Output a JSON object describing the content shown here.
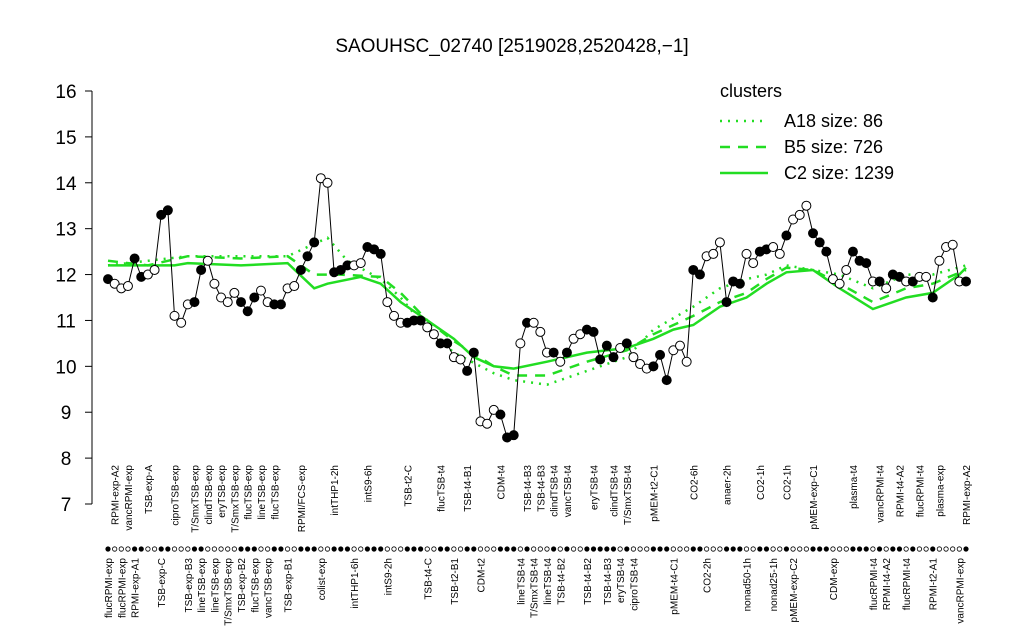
{
  "chart_data": {
    "type": "line",
    "title": "SAOUHSC_02740 [2519028,2520428,−1]",
    "categories": [
      "flucRPMI-exp",
      "RPMI-exp-A2",
      "flucRPMI-exp",
      "vancRPMI-exp",
      "RPMI-exp-A1",
      null,
      "TSB-exp-A",
      null,
      "TSB-exp-C",
      null,
      "ciproTSB-exp",
      null,
      "TSB-exp-B3",
      "T/SmxTSB-exp",
      "lineTSB-exp",
      "clindTSB-exp",
      "lineTSB-exp",
      "eryTSB-exp",
      "T/SmxTSB-exp",
      "T/SmxTSB-exp",
      "TSB-exp-B2",
      "flucTSB-exp",
      "flucTSB-exp",
      "lineTSB-exp",
      "vancTSB-exp",
      "flucTSB-exp",
      null,
      "TSB-exp-B1",
      null,
      "RPMI/FCS-exp",
      null,
      null,
      "colist-exp",
      null,
      "intTHP1-2h",
      null,
      null,
      "intTHP1-6h",
      null,
      "intS9-6h",
      null,
      null,
      "intS9-2h",
      null,
      null,
      "TSB-t2-C",
      null,
      null,
      "TSB-t4-C",
      null,
      "flucTSB-t4",
      null,
      "TSB-t2-B1",
      null,
      "TSB-t4-B1",
      null,
      "CDM-t2",
      null,
      null,
      "CDM-t4",
      null,
      null,
      "lineTSB-t4",
      "TSB-t4-B3",
      "T/SmxTSB-t4",
      "TSB-t4-B3",
      "lineTSB-t4",
      "clindTSB-t4",
      "TSB-t4-B2",
      "vancTSB-t4",
      null,
      null,
      "TSB-t4-B2",
      "eryTSB-t4",
      null,
      "TSB-t4-B3",
      "clindTSB-t4",
      "eryTSB-t4",
      "T/SmxTSB-t4",
      "ciproTSB-t4",
      null,
      null,
      "pMEM-t2-C1",
      null,
      null,
      "pMEM-t4-C1",
      null,
      null,
      "CO2-6h",
      null,
      "CO2-2h",
      null,
      null,
      "anaer-2h",
      null,
      null,
      "nonad50-1h",
      null,
      "CO2-1h",
      null,
      "nonad25-1h",
      null,
      "CO2-1h",
      "pMEM-exp-C2",
      null,
      null,
      "pMEM-exp-C1",
      null,
      null,
      "CDM-exp",
      null,
      null,
      "plasma-t4",
      null,
      null,
      "flucRPMI-t4",
      "vancRPMI-t4",
      "RPMI-t4-A2",
      null,
      "RPMI-t4-A2",
      "flucRPMI-t4",
      null,
      "flucRPMI-t4",
      null,
      "RPMI-t2-A1",
      "plasma-exp",
      null,
      null,
      "vancRPMI-exp",
      "RPMI-exp-A2"
    ],
    "values": [
      11.9,
      11.8,
      11.7,
      11.75,
      12.35,
      11.95,
      12.0,
      12.1,
      13.3,
      13.4,
      11.1,
      10.95,
      11.35,
      11.4,
      12.1,
      12.3,
      11.8,
      11.5,
      11.4,
      11.6,
      11.4,
      11.2,
      11.5,
      11.65,
      11.4,
      11.35,
      11.35,
      11.7,
      11.75,
      12.1,
      12.4,
      12.7,
      14.1,
      14.0,
      12.05,
      12.1,
      12.2,
      12.2,
      12.25,
      12.6,
      12.55,
      12.45,
      11.4,
      11.1,
      10.95,
      10.95,
      11.0,
      11.0,
      10.85,
      10.7,
      10.5,
      10.5,
      10.2,
      10.15,
      9.9,
      10.3,
      8.8,
      8.75,
      9.05,
      8.95,
      8.45,
      8.5,
      10.5,
      10.95,
      10.95,
      10.75,
      10.3,
      10.3,
      10.1,
      10.3,
      10.6,
      10.7,
      10.8,
      10.75,
      10.15,
      10.45,
      10.2,
      10.4,
      10.5,
      10.2,
      10.05,
      9.95,
      10.0,
      10.25,
      9.7,
      10.35,
      10.45,
      10.1,
      12.1,
      12.0,
      12.4,
      12.45,
      12.7,
      11.4,
      11.85,
      11.8,
      12.45,
      12.25,
      12.5,
      12.55,
      12.6,
      12.45,
      12.85,
      13.2,
      13.3,
      13.5,
      12.9,
      12.7,
      12.5,
      11.9,
      11.8,
      12.1,
      12.5,
      12.3,
      12.25,
      11.85,
      11.85,
      11.7,
      12.0,
      11.95,
      11.85,
      11.85,
      11.95,
      11.95,
      11.5,
      12.3,
      12.6,
      12.65,
      11.85,
      11.85
    ],
    "point_colors": [
      "black",
      "white",
      "white",
      "white",
      "black",
      "black",
      "white",
      "white",
      "black",
      "black",
      "white",
      "white",
      "white",
      "black",
      "black",
      "white",
      "white",
      "white",
      "white",
      "white",
      "black",
      "black",
      "black",
      "white",
      "white",
      "black",
      "black",
      "white",
      "white",
      "black",
      "black",
      "black",
      "white",
      "white",
      "black",
      "black",
      "black",
      "white",
      "white",
      "black",
      "black",
      "black",
      "white",
      "white",
      "white",
      "black",
      "black",
      "black",
      "white",
      "white",
      "black",
      "black",
      "white",
      "white",
      "black",
      "black",
      "white",
      "white",
      "white",
      "black",
      "black",
      "black",
      "white",
      "black",
      "white",
      "white",
      "white",
      "black",
      "white",
      "black",
      "white",
      "white",
      "black",
      "black",
      "black",
      "black",
      "black",
      "white",
      "black",
      "white",
      "white",
      "white",
      "black",
      "black",
      "black",
      "white",
      "white",
      "white",
      "black",
      "black",
      "white",
      "white",
      "white",
      "black",
      "black",
      "black",
      "white",
      "white",
      "black",
      "black",
      "white",
      "white",
      "black",
      "white",
      "white",
      "white",
      "black",
      "black",
      "black",
      "white",
      "white",
      "white",
      "black",
      "black",
      "black",
      "white",
      "black",
      "white",
      "black",
      "black",
      "white",
      "black",
      "white",
      "white",
      "black",
      "white",
      "white",
      "white",
      "white",
      "black"
    ],
    "ylim": [
      7,
      16
    ],
    "yticks": [
      7,
      8,
      9,
      10,
      11,
      12,
      13,
      14,
      15,
      16
    ],
    "legend_title": "clusters",
    "clusters": [
      {
        "name": "A18 size: 86",
        "style": "dotted",
        "color": "#22dd22",
        "x": [
          0,
          12,
          27,
          33,
          36,
          41,
          44,
          48,
          52,
          58,
          61,
          66,
          72,
          78,
          82,
          88,
          92,
          96,
          99,
          102,
          106,
          110,
          115,
          120,
          124,
          129
        ],
        "values": [
          12.2,
          12.4,
          12.4,
          12.8,
          12.3,
          11.9,
          11.5,
          10.8,
          10.3,
          9.85,
          9.7,
          9.6,
          9.9,
          10.2,
          10.8,
          11.3,
          11.7,
          11.9,
          12.0,
          12.2,
          12.1,
          12.0,
          11.7,
          12.0,
          12.0,
          12.2
        ]
      },
      {
        "name": "B5 size: 726",
        "style": "dashed",
        "color": "#22dd22",
        "x": [
          0,
          6,
          12,
          20,
          27,
          31,
          35,
          41,
          44,
          48,
          52,
          58,
          61,
          66,
          72,
          78,
          82,
          88,
          92,
          96,
          99,
          102,
          106,
          110,
          115,
          120,
          124,
          129
        ],
        "values": [
          12.3,
          12.2,
          12.4,
          12.35,
          12.4,
          12.0,
          12.0,
          11.95,
          11.6,
          11.0,
          10.55,
          10.0,
          9.8,
          9.8,
          10.1,
          10.35,
          10.7,
          11.1,
          11.4,
          11.6,
          11.9,
          12.15,
          12.1,
          11.8,
          11.4,
          11.7,
          11.8,
          12.1
        ]
      },
      {
        "name": "C2 size: 1239",
        "style": "solid",
        "color": "#22dd22",
        "x": [
          0,
          6,
          10,
          12,
          20,
          27,
          31,
          33,
          38,
          41,
          44,
          48,
          52,
          55,
          58,
          61,
          66,
          72,
          78,
          82,
          85,
          88,
          92,
          96,
          99,
          102,
          106,
          110,
          115,
          120,
          124,
          128,
          129
        ],
        "values": [
          12.2,
          12.2,
          12.2,
          12.25,
          12.2,
          12.25,
          11.7,
          11.8,
          11.95,
          11.8,
          11.4,
          11.0,
          10.6,
          10.2,
          10.0,
          9.95,
          10.1,
          10.3,
          10.4,
          10.6,
          10.8,
          10.9,
          11.3,
          11.5,
          11.8,
          12.05,
          12.1,
          11.7,
          11.25,
          11.5,
          11.6,
          12.0,
          12.15
        ]
      }
    ]
  }
}
